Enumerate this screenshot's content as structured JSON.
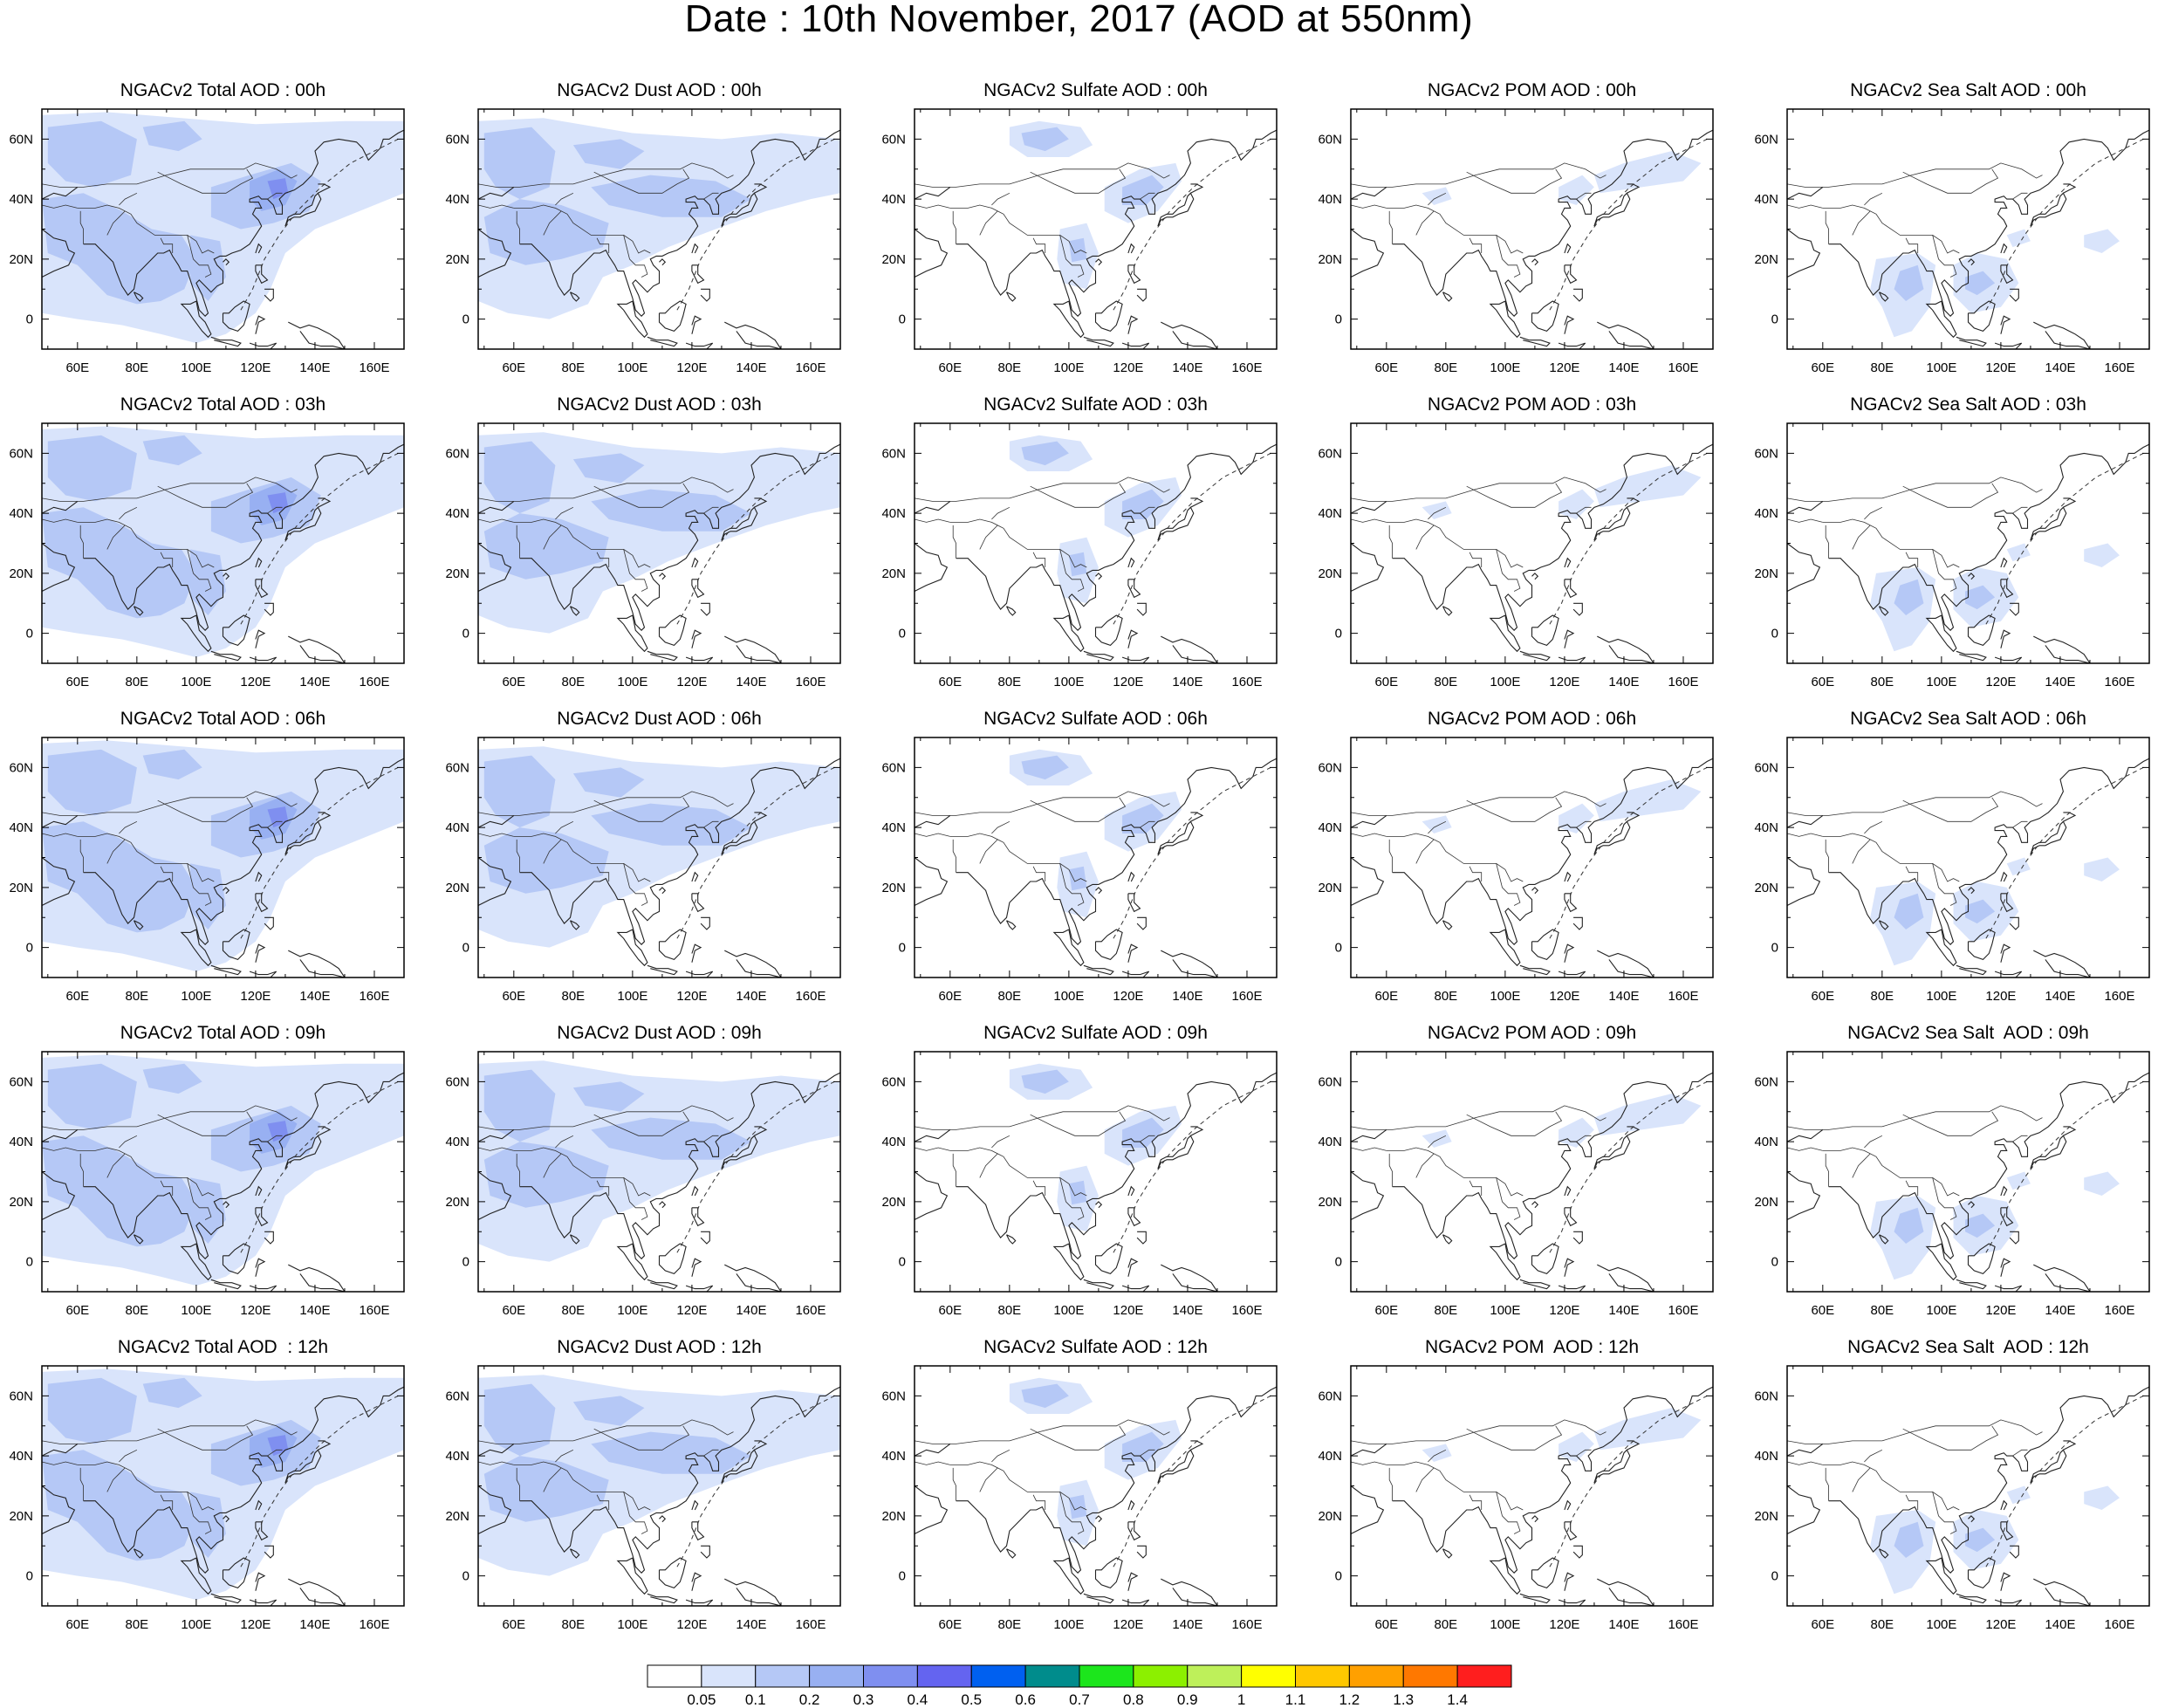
{
  "title": "Date : 10th November, 2017 (AOD at 550nm)",
  "panels": [
    [
      {
        "title": "NGACv2 Total AOD : 00h",
        "species": "total"
      },
      {
        "title": "NGACv2 Dust AOD : 00h",
        "species": "dust"
      },
      {
        "title": "NGACv2 Sulfate AOD : 00h",
        "species": "sulfate"
      },
      {
        "title": "NGACv2 POM AOD : 00h",
        "species": "pom"
      },
      {
        "title": "NGACv2 Sea Salt AOD : 00h",
        "species": "seasalt"
      }
    ],
    [
      {
        "title": "NGACv2 Total AOD : 03h",
        "species": "total"
      },
      {
        "title": "NGACv2 Dust AOD : 03h",
        "species": "dust"
      },
      {
        "title": "NGACv2 Sulfate AOD : 03h",
        "species": "sulfate"
      },
      {
        "title": "NGACv2 POM AOD : 03h",
        "species": "pom"
      },
      {
        "title": "NGACv2 Sea Salt AOD : 03h",
        "species": "seasalt"
      }
    ],
    [
      {
        "title": "NGACv2 Total AOD : 06h",
        "species": "total"
      },
      {
        "title": "NGACv2 Dust AOD : 06h",
        "species": "dust"
      },
      {
        "title": "NGACv2 Sulfate AOD : 06h",
        "species": "sulfate"
      },
      {
        "title": "NGACv2 POM AOD : 06h",
        "species": "pom"
      },
      {
        "title": "NGACv2 Sea Salt AOD : 06h",
        "species": "seasalt"
      }
    ],
    [
      {
        "title": "NGACv2 Total AOD : 09h",
        "species": "total"
      },
      {
        "title": "NGACv2 Dust AOD : 09h",
        "species": "dust"
      },
      {
        "title": "NGACv2 Sulfate AOD : 09h",
        "species": "sulfate"
      },
      {
        "title": "NGACv2 POM AOD : 09h",
        "species": "pom"
      },
      {
        "title": "NGACv2 Sea Salt  AOD : 09h",
        "species": "seasalt"
      }
    ],
    [
      {
        "title": "NGACv2 Total AOD  : 12h",
        "species": "total"
      },
      {
        "title": "NGACv2 Dust AOD : 12h",
        "species": "dust"
      },
      {
        "title": "NGACv2 Sulfate AOD : 12h",
        "species": "sulfate"
      },
      {
        "title": "NGACv2 POM  AOD : 12h",
        "species": "pom"
      },
      {
        "title": "NGACv2 Sea Salt  AOD : 12h",
        "species": "seasalt"
      }
    ]
  ],
  "axes": {
    "x_ticks": [
      "60E",
      "80E",
      "100E",
      "120E",
      "140E",
      "160E"
    ],
    "y_ticks": [
      "60N",
      "40N",
      "20N",
      "0"
    ]
  },
  "colorbar": {
    "labels": [
      "0.05",
      "0.1",
      "0.2",
      "0.3",
      "0.4",
      "0.5",
      "0.6",
      "0.7",
      "0.8",
      "0.9",
      "1",
      "1.1",
      "1.2",
      "1.3",
      "1.4"
    ],
    "colors": [
      "#ffffff",
      "#d9e4fb",
      "#b5c8f6",
      "#98b0f2",
      "#7f8ff0",
      "#6464f0",
      "#0060f0",
      "#008c8c",
      "#1ce61c",
      "#8cf000",
      "#bef05a",
      "#ffff00",
      "#ffc800",
      "#ffa000",
      "#ff7800",
      "#ff1e1e"
    ]
  }
}
